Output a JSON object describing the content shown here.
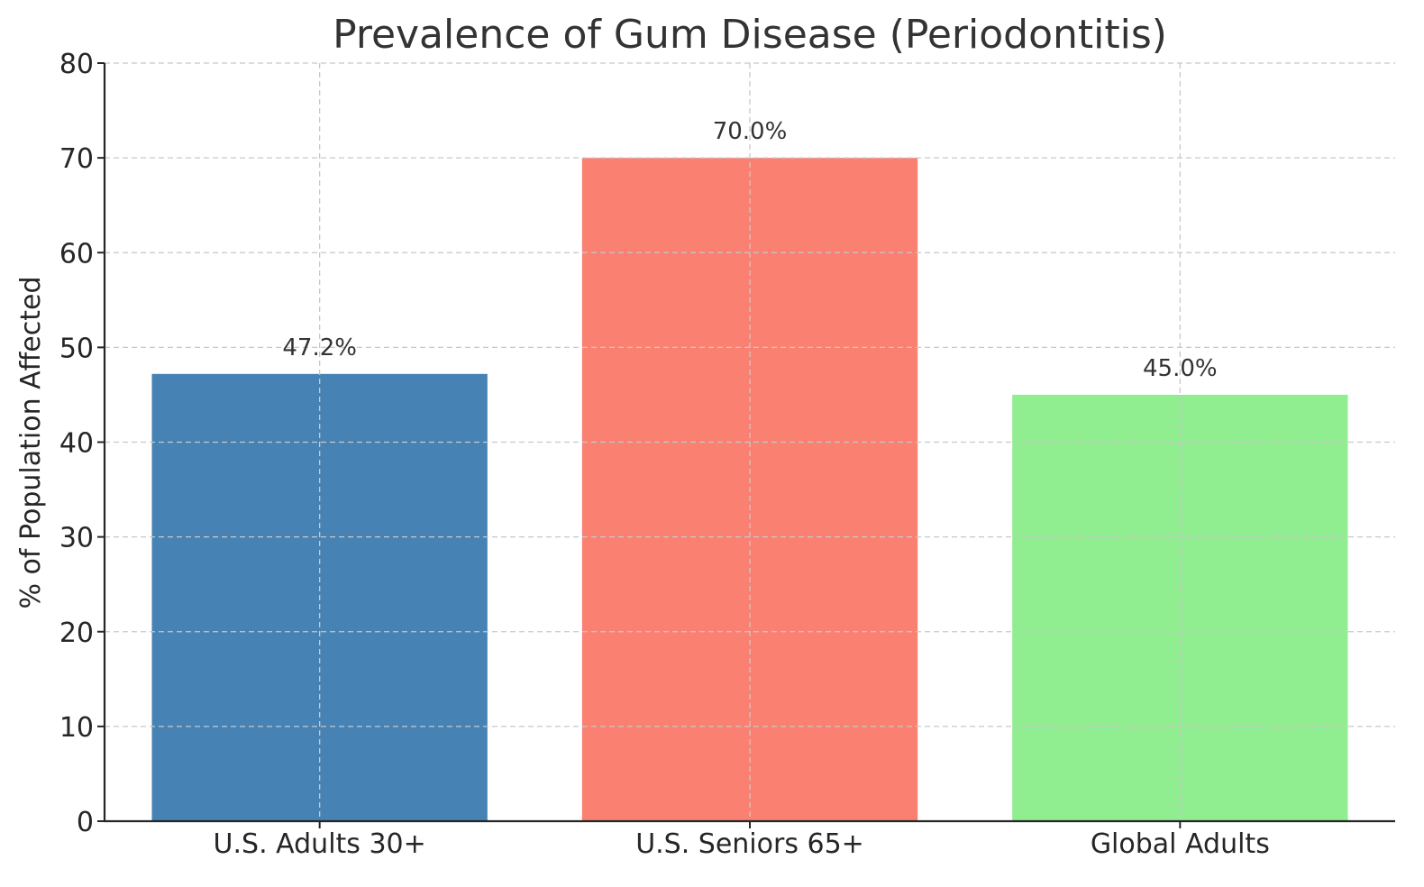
{
  "chart_data": {
    "type": "bar",
    "title": "Prevalence of Gum Disease (Periodontitis)",
    "xlabel": "",
    "ylabel": "% of Population Affected",
    "categories": [
      "U.S. Adults 30+",
      "U.S. Seniors 65+",
      "Global Adults"
    ],
    "values": [
      47.2,
      70.0,
      45.0
    ],
    "value_labels": [
      "47.2%",
      "70.0%",
      "45.0%"
    ],
    "colors": [
      "#4682b4",
      "#fa8072",
      "#90ee90"
    ],
    "ylim": [
      0,
      80
    ],
    "yticks": [
      0,
      10,
      20,
      30,
      40,
      50,
      60,
      70,
      80
    ],
    "grid": true,
    "legend": null
  }
}
